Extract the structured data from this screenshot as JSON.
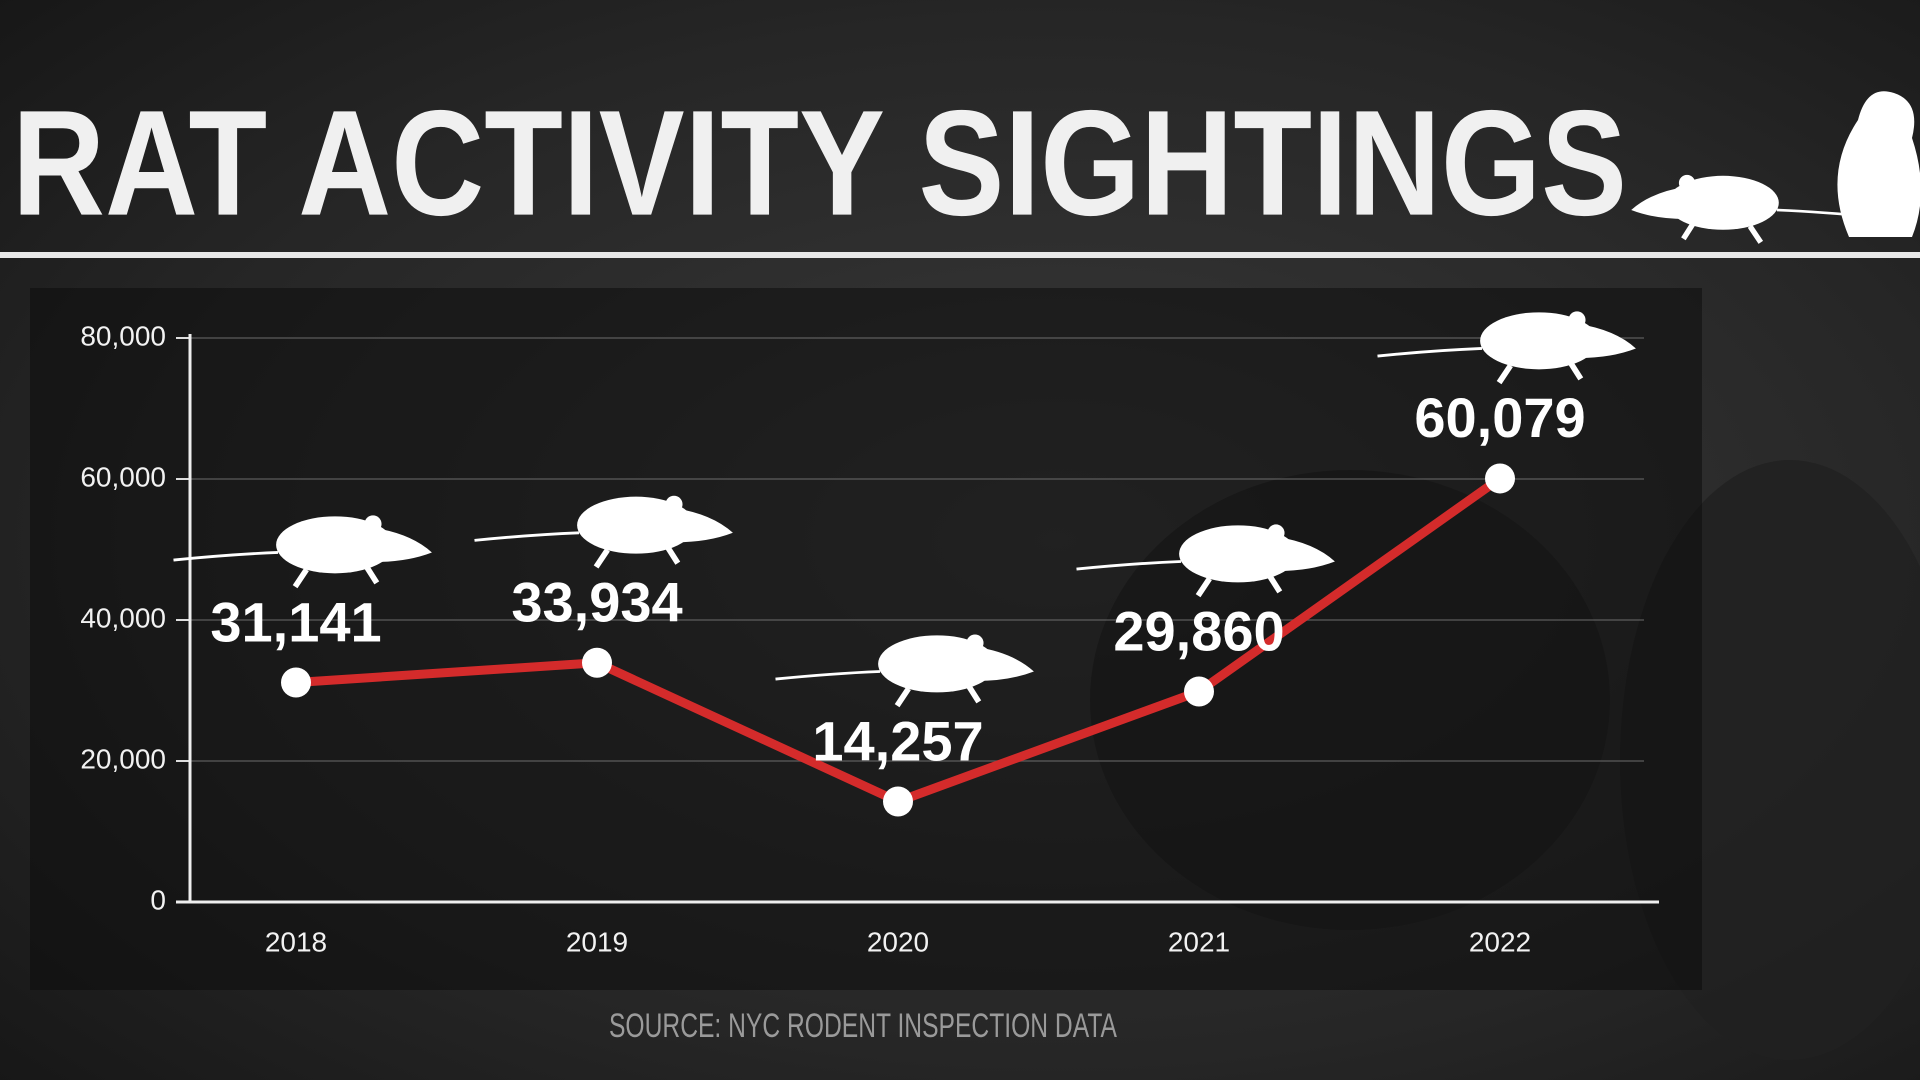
{
  "chart_data": {
    "type": "line",
    "title": "RAT ACTIVITY SIGHTINGS",
    "categories": [
      "2018",
      "2019",
      "2020",
      "2021",
      "2022"
    ],
    "series": [
      {
        "name": "Rat activity sightings",
        "color": "#d42b2b",
        "values": [
          31141,
          33934,
          14257,
          29860,
          60079
        ],
        "value_labels": [
          "31,141",
          "33,934",
          "14,257",
          "29,860",
          "60,079"
        ]
      }
    ],
    "ylim": [
      0,
      80000
    ],
    "yticks": [
      0,
      {
        "value": 20000,
        "label": "20,000"
      },
      {
        "value": 40000,
        "label": "40,000"
      },
      {
        "value": 60000,
        "label": "60,000"
      },
      {
        "value": 80000,
        "label": "80,000"
      }
    ],
    "grid": true,
    "source": "SOURCE: NYC RODENT INSPECTION DATA"
  }
}
